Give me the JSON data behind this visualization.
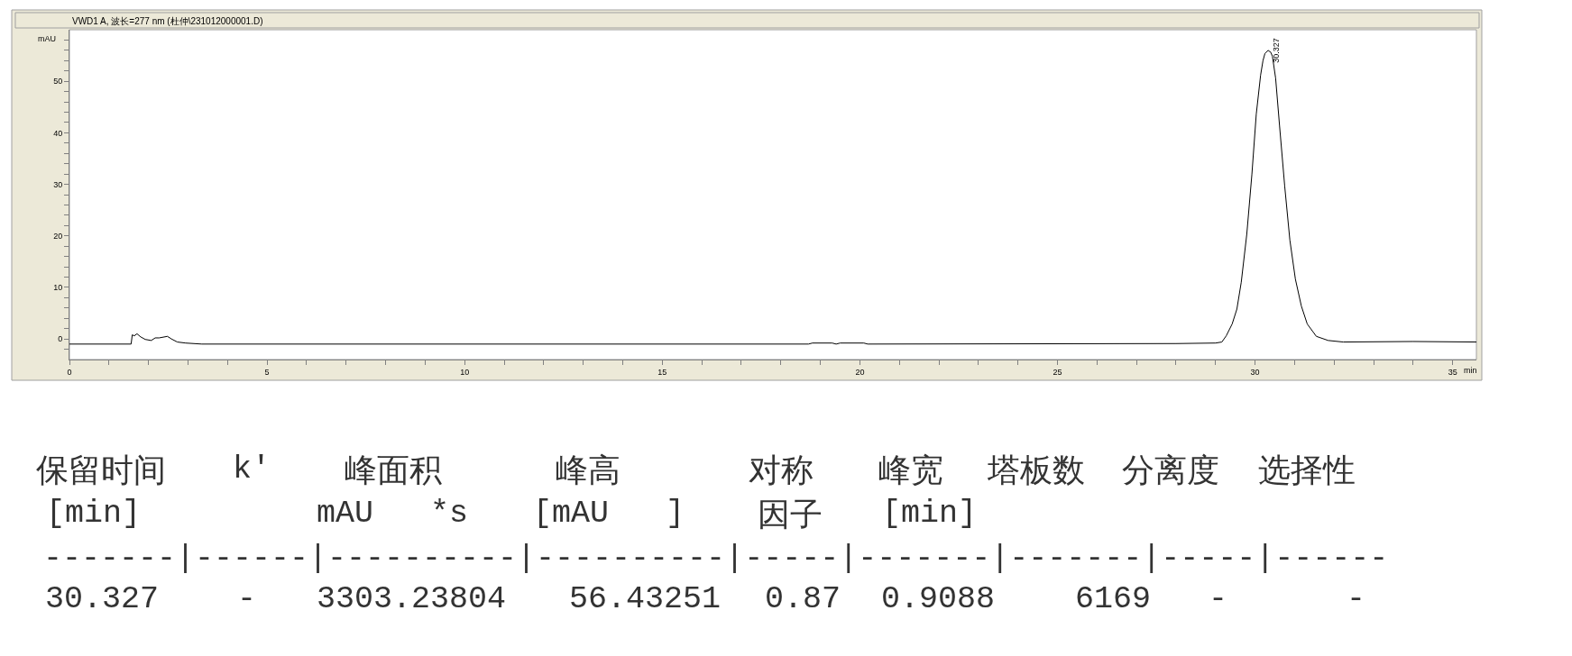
{
  "chart_data": {
    "type": "line",
    "title": "VWD1 A, 波长=277 nm (杜仲\\231012000001.D)",
    "xlabel": "min",
    "ylabel": "mAU",
    "x": [
      0,
      1.56,
      1.59,
      1.64,
      1.71,
      1.8,
      1.92,
      2.07,
      2.17,
      2.27,
      2.48,
      2.58,
      2.73,
      2.94,
      3.35,
      18.7,
      18.8,
      19.3,
      19.4,
      19.5,
      20.1,
      20.2,
      28.0,
      29.0,
      29.16,
      29.27,
      29.42,
      29.54,
      29.65,
      29.79,
      29.92,
      30.03,
      30.14,
      30.2,
      30.25,
      30.33,
      30.4,
      30.44,
      30.52,
      30.62,
      30.75,
      30.88,
      31.02,
      31.17,
      31.32,
      31.55,
      31.85,
      32.23,
      34.0,
      35.6
    ],
    "series": [
      {
        "color": "#000000",
        "values": [
          -1.0,
          -1.0,
          0.8,
          0.6,
          1.0,
          0.4,
          -0.1,
          -0.3,
          0.2,
          0.2,
          0.5,
          0.0,
          -0.6,
          -0.8,
          -1.0,
          -1.0,
          -0.8,
          -0.8,
          -1.0,
          -0.8,
          -0.8,
          -1.0,
          -0.9,
          -0.8,
          -0.6,
          0.6,
          2.9,
          5.8,
          11.0,
          20.3,
          32.0,
          43.6,
          51.2,
          54.0,
          55.4,
          56.0,
          55.6,
          54.8,
          50.6,
          41.3,
          29.6,
          19.2,
          11.6,
          6.4,
          2.9,
          0.5,
          -0.3,
          -0.6,
          -0.5,
          -0.6
        ]
      }
    ],
    "xlim": [
      0,
      35.6
    ],
    "ylim": [
      -4,
      60
    ],
    "xticks": [
      0,
      {
        "value": 1,
        "label": null
      },
      {
        "value": 2,
        "label": null
      },
      {
        "value": 3,
        "label": null
      },
      {
        "value": 4,
        "label": null
      },
      5,
      {
        "value": 6,
        "label": null
      },
      {
        "value": 7,
        "label": null
      },
      {
        "value": 8,
        "label": null
      },
      {
        "value": 9,
        "label": null
      },
      10,
      {
        "value": 11,
        "label": null
      },
      {
        "value": 12,
        "label": null
      },
      {
        "value": 13,
        "label": null
      },
      {
        "value": 14,
        "label": null
      },
      15,
      {
        "value": 16,
        "label": null
      },
      {
        "value": 17,
        "label": null
      },
      {
        "value": 18,
        "label": null
      },
      {
        "value": 19,
        "label": null
      },
      20,
      {
        "value": 21,
        "label": null
      },
      {
        "value": 22,
        "label": null
      },
      {
        "value": 23,
        "label": null
      },
      {
        "value": 24,
        "label": null
      },
      25,
      {
        "value": 26,
        "label": null
      },
      {
        "value": 27,
        "label": null
      },
      {
        "value": 28,
        "label": null
      },
      {
        "value": 29,
        "label": null
      },
      30,
      {
        "value": 31,
        "label": null
      },
      {
        "value": 32,
        "label": null
      },
      {
        "value": 33,
        "label": null
      },
      {
        "value": 34,
        "label": null
      },
      35
    ],
    "yticks": [
      {
        "value": -2,
        "label": null
      },
      0,
      {
        "value": 2,
        "label": null
      },
      {
        "value": 4,
        "label": null
      },
      {
        "value": 6,
        "label": null
      },
      {
        "value": 8,
        "label": null
      },
      10,
      {
        "value": 12,
        "label": null
      },
      {
        "value": 14,
        "label": null
      },
      {
        "value": 16,
        "label": null
      },
      {
        "value": 18,
        "label": null
      },
      20,
      {
        "value": 22,
        "label": null
      },
      {
        "value": 24,
        "label": null
      },
      {
        "value": 26,
        "label": null
      },
      {
        "value": 28,
        "label": null
      },
      30,
      {
        "value": 32,
        "label": null
      },
      {
        "value": 34,
        "label": null
      },
      {
        "value": 36,
        "label": null
      },
      {
        "value": 38,
        "label": null
      },
      40,
      {
        "value": 42,
        "label": null
      },
      {
        "value": 44,
        "label": null
      },
      {
        "value": 46,
        "label": null
      },
      {
        "value": 48,
        "label": null
      },
      50,
      {
        "value": 52,
        "label": null
      },
      {
        "value": 54,
        "label": null
      },
      {
        "value": 56,
        "label": null
      },
      {
        "value": 58,
        "label": null
      }
    ],
    "annotations": [
      {
        "text": "30.327",
        "x": 30.327,
        "y": 56.0
      },
      "保留时间",
      "k'",
      "峰面积",
      "峰高",
      "对称",
      "峰宽",
      "塔板数",
      "分离度",
      "选择性",
      "[min]",
      "mAU   *s",
      "[mAU   ]",
      "因子",
      "[min]",
      "-------|------|----------|----------|-----|-------|-------|-----|------",
      "30.327",
      "-",
      "3303.23804",
      "56.43251",
      "0.87",
      "0.9088",
      "6169",
      "-",
      "-"
    ]
  }
}
